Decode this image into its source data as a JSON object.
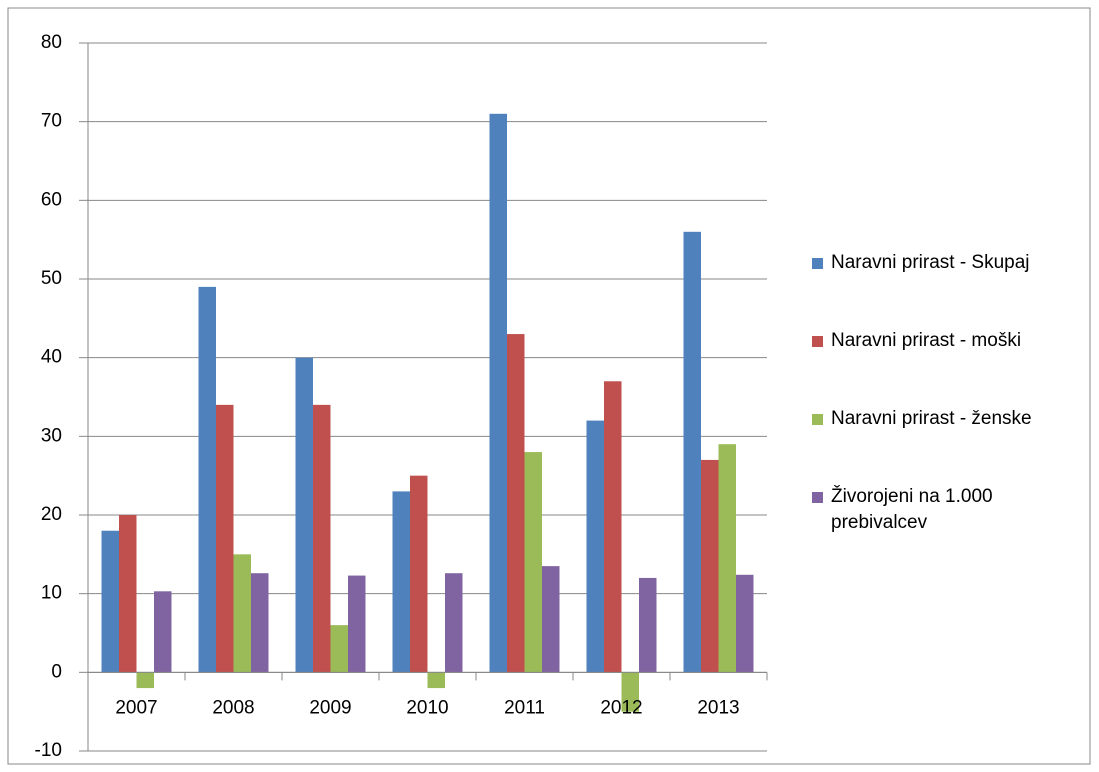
{
  "chart_data": {
    "type": "bar",
    "categories": [
      "2007",
      "2008",
      "2009",
      "2010",
      "2011",
      "2012",
      "2013"
    ],
    "series": [
      {
        "name": "Naravni prirast - Skupaj",
        "color": "#4f81bd",
        "values": [
          18,
          49,
          40,
          23,
          71,
          32,
          56
        ]
      },
      {
        "name": "Naravni prirast - moški",
        "color": "#c0504d",
        "values": [
          20,
          34,
          34,
          25,
          43,
          37,
          27
        ]
      },
      {
        "name": "Naravni prirast - ženske",
        "color": "#9bbb59",
        "values": [
          -2,
          15,
          6,
          -2,
          28,
          -5,
          29
        ]
      },
      {
        "name": "Živorojeni na 1.000 prebivalcev",
        "color": "#8064a2",
        "values": [
          10.3,
          12.6,
          12.3,
          12.6,
          13.5,
          12,
          12.4
        ]
      }
    ],
    "ylim": [
      -10,
      80
    ],
    "yticks": [
      -10,
      0,
      10,
      20,
      30,
      40,
      50,
      60,
      70,
      80
    ],
    "grid": true,
    "legend": "right"
  }
}
